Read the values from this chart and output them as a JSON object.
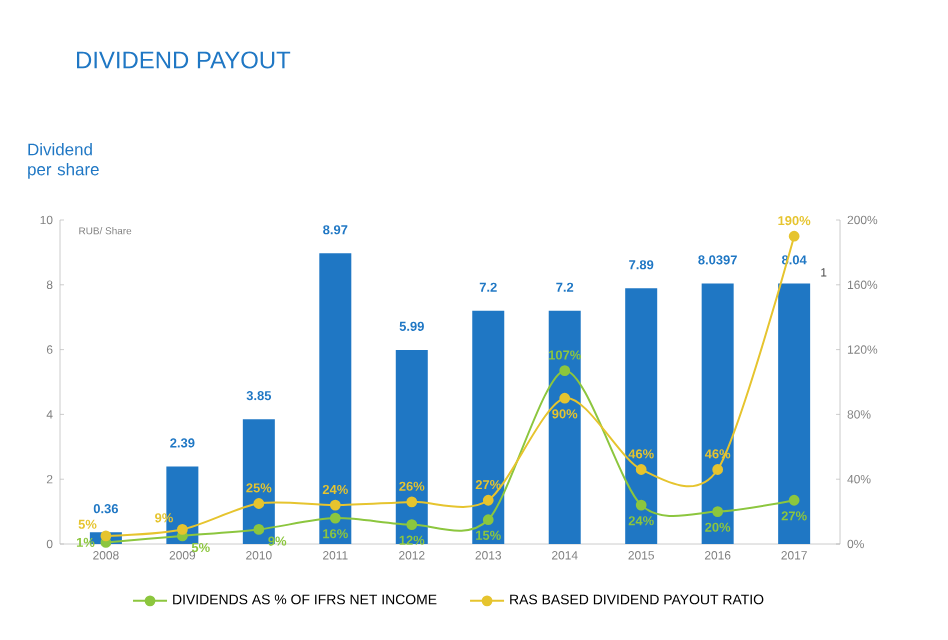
{
  "chart_data": {
    "type": "bar",
    "title": "DIVIDEND PAYOUT",
    "ylabel": "Dividend per share",
    "annotations": [
      "RUB/ Share",
      "1"
    ],
    "categories": [
      "2008",
      "2009",
      "2010",
      "2011",
      "2012",
      "2013",
      "2014",
      "2015",
      "2016",
      "2017"
    ],
    "ylim": [
      0,
      10
    ],
    "yticks": [
      0,
      2,
      4,
      6,
      8,
      10
    ],
    "y2lim": [
      0,
      200
    ],
    "y2ticks": [
      {
        "value": 0,
        "label": "0%"
      },
      {
        "value": 40,
        "label": "40%"
      },
      {
        "value": 80,
        "label": "80%"
      },
      {
        "value": 120,
        "label": "120%"
      },
      {
        "value": 160,
        "label": "160%"
      },
      {
        "value": 200,
        "label": "200%"
      }
    ],
    "legend": "bottom",
    "marker": "circle",
    "series": [
      {
        "color": "#1f77c4",
        "values": [
          0.36,
          2.39,
          3.85,
          8.97,
          5.99,
          7.2,
          7.2,
          7.89,
          8.0397,
          8.04
        ],
        "value_labels": [
          "0.36",
          "2.39",
          "3.85",
          "8.97",
          "5.99",
          "7.2",
          "7.2",
          "7.89",
          "8.0397",
          "8.04"
        ]
      },
      {
        "name": "DIVIDENDS AS % OF IFRS NET INCOME",
        "type": "line",
        "axis": "y2",
        "color": "#8cc63e",
        "values": [
          1,
          5,
          9,
          16,
          12,
          15,
          107,
          24,
          20,
          27
        ],
        "value_labels": [
          "1%",
          "5%",
          "9%",
          "16%",
          "12%",
          "15%",
          "107%",
          "24%",
          "20%",
          "27%"
        ]
      },
      {
        "name": "RAS BASED DIVIDEND PAYOUT RATIO",
        "type": "line",
        "axis": "y2",
        "color": "#e6c42e",
        "values": [
          5,
          9,
          25,
          24,
          26,
          27,
          90,
          46,
          46,
          190
        ],
        "value_labels": [
          "5%",
          "9%",
          "25%",
          "24%",
          "26%",
          "27%",
          "90%",
          "46%",
          "46%",
          "190%"
        ]
      }
    ]
  }
}
